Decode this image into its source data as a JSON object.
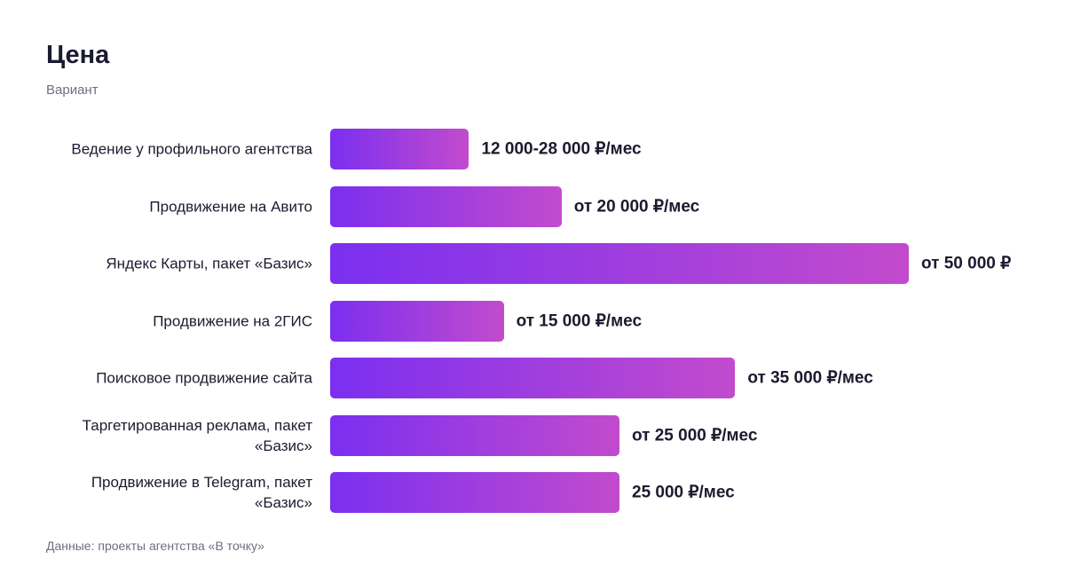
{
  "chart_data": {
    "type": "bar",
    "orientation": "horizontal",
    "title": "Цена",
    "subtitle": "Вариант",
    "categories": [
      "Ведение у профильного агентства",
      "Продвижение на Авито",
      "Яндекс Карты, пакет «Базис»",
      "Продвижение на 2ГИС",
      "Поисковое продвижение сайта",
      "Таргетированная реклама, пакет «Базис»",
      "Продвижение в Telegram, пакет «Базис»"
    ],
    "values": [
      12000,
      20000,
      50000,
      15000,
      35000,
      25000,
      25000
    ],
    "value_labels": [
      "12 000-28 000 ₽/мес",
      "от 20 000 ₽/мес",
      "от 50 000 ₽",
      "от 15 000 ₽/мес",
      "от 35 000 ₽/мес",
      "от 25 000 ₽/мес",
      "25 000 ₽/мес"
    ],
    "color": "#7b2ff0",
    "color_end": "#c24bcd",
    "source": "Данные: проекты агентства «В точку»"
  }
}
